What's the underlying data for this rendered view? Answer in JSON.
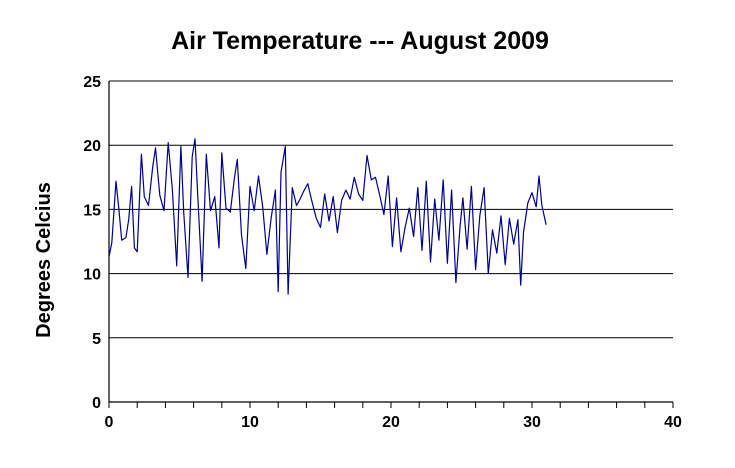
{
  "chart_data": {
    "type": "line",
    "title": "Air Temperature --- August 2009",
    "xlabel": "",
    "ylabel": "Degrees Celcius",
    "xlim": [
      0,
      40
    ],
    "ylim": [
      0,
      25
    ],
    "x_ticks": [
      "0",
      "10",
      "20",
      "30",
      "40"
    ],
    "y_ticks": [
      "0",
      "5",
      "10",
      "15",
      "20",
      "25"
    ],
    "grid": "horizontal",
    "line_color": "#00008b",
    "series": [
      {
        "x": [
          0.0,
          0.2,
          0.5,
          0.7,
          0.9,
          1.2,
          1.4,
          1.6,
          1.8,
          2.0,
          2.3,
          2.5,
          2.8,
          3.1,
          3.3,
          3.6,
          3.9,
          4.2,
          4.5,
          4.8,
          5.1,
          5.3,
          5.6,
          5.9,
          6.1,
          6.3,
          6.6,
          6.9,
          7.2,
          7.5,
          7.8,
          8.0,
          8.3,
          8.6,
          8.9,
          9.1,
          9.4,
          9.7,
          10.0,
          10.3,
          10.6,
          10.9,
          11.2,
          11.5,
          11.8,
          12.0,
          12.2,
          12.5,
          12.7,
          13.0,
          13.3,
          13.5,
          13.8,
          14.1,
          14.4,
          14.7,
          15.0,
          15.3,
          15.6,
          15.9,
          16.2,
          16.5,
          16.8,
          17.1,
          17.4,
          17.7,
          18.0,
          18.3,
          18.6,
          18.9,
          19.2,
          19.5,
          19.8,
          20.1,
          20.4,
          20.7,
          21.0,
          21.3,
          21.6,
          21.9,
          22.2,
          22.5,
          22.8,
          23.1,
          23.4,
          23.7,
          24.0,
          24.3,
          24.6,
          24.9,
          25.1,
          25.4,
          25.7,
          26.0,
          26.3,
          26.6,
          26.9,
          27.2,
          27.5,
          27.8,
          28.1,
          28.4,
          28.7,
          29.0,
          29.2,
          29.4,
          29.7,
          30.0,
          30.3,
          30.5,
          30.7,
          31.0
        ],
        "y": [
          11.3,
          12.4,
          17.2,
          15.0,
          12.6,
          12.8,
          14.2,
          16.8,
          12.0,
          11.7,
          19.3,
          16.0,
          15.3,
          18.3,
          19.8,
          16.1,
          14.9,
          20.2,
          16.5,
          10.6,
          19.9,
          14.8,
          9.7,
          19.1,
          20.5,
          16.0,
          9.4,
          19.3,
          14.9,
          16.0,
          12.0,
          19.4,
          15.1,
          14.8,
          17.5,
          18.9,
          13.0,
          10.4,
          16.8,
          14.9,
          17.6,
          15.2,
          11.5,
          14.3,
          16.5,
          8.6,
          17.9,
          19.9,
          8.4,
          16.7,
          15.3,
          15.7,
          16.4,
          17.0,
          15.6,
          14.3,
          13.6,
          16.2,
          14.1,
          16.0,
          13.2,
          15.7,
          16.5,
          15.8,
          17.5,
          16.2,
          15.7,
          19.2,
          17.3,
          17.5,
          16.1,
          14.6,
          17.6,
          12.1,
          15.9,
          11.7,
          13.6,
          15.1,
          12.9,
          16.7,
          11.8,
          17.2,
          10.9,
          15.8,
          12.6,
          17.3,
          10.8,
          16.5,
          9.3,
          13.7,
          15.9,
          11.9,
          16.8,
          10.3,
          14.5,
          16.7,
          10.0,
          13.4,
          11.6,
          14.5,
          10.7,
          14.3,
          12.3,
          14.2,
          9.1,
          13.2,
          15.5,
          16.3,
          15.2,
          17.6,
          15.3,
          13.8
        ]
      }
    ]
  }
}
